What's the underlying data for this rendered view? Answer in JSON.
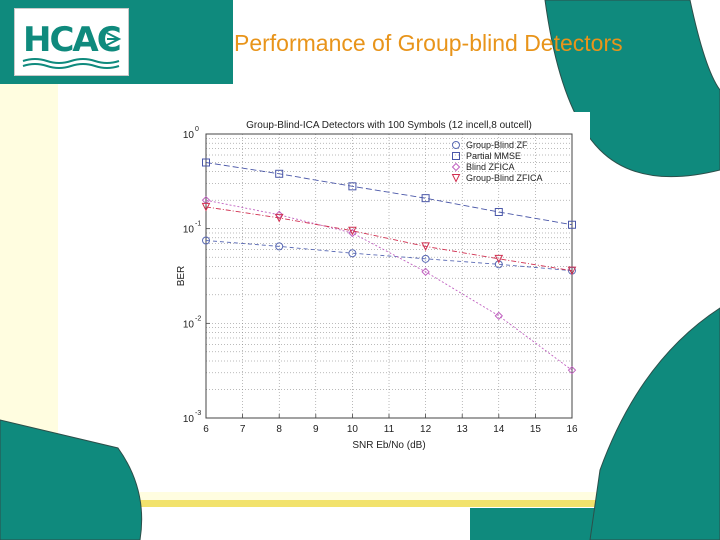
{
  "slide": {
    "title": "Performance of Group-blind Detectors",
    "logo_text": "HCAC",
    "colors": {
      "teal": "#0f8a7d",
      "title_orange": "#e8941a",
      "cream": "#fffde0",
      "yellow_bar": "#f2e26c"
    }
  },
  "chart_data": {
    "type": "line",
    "title": "Group-Blind-ICA Detectors with 100 Symbols (12 incell,8 outcell)",
    "xlabel": "SNR Eb/No (dB)",
    "ylabel": "BER",
    "xlim": [
      6,
      16
    ],
    "ylim": [
      0.001,
      1
    ],
    "yscale": "log",
    "grid": true,
    "legend_position": "top-right",
    "x_ticks": [
      6,
      7,
      8,
      9,
      10,
      11,
      12,
      13,
      14,
      15,
      16
    ],
    "y_ticks": [
      {
        "value": 1,
        "base": "10",
        "exp": "0"
      },
      {
        "value": 0.1,
        "base": "10",
        "exp": "-1"
      },
      {
        "value": 0.01,
        "base": "10",
        "exp": "-2"
      },
      {
        "value": 0.001,
        "base": "10",
        "exp": "-3"
      }
    ],
    "x": [
      6,
      8,
      10,
      12,
      14,
      16
    ],
    "series": [
      {
        "name": "Group-Blind ZF",
        "marker": "circle",
        "color": "#5b6bb5",
        "values": [
          0.075,
          0.065,
          0.055,
          0.048,
          0.042,
          0.036
        ]
      },
      {
        "name": "Partial MMSE",
        "marker": "square",
        "color": "#4a57a8",
        "values": [
          0.5,
          0.38,
          0.28,
          0.21,
          0.15,
          0.11
        ]
      },
      {
        "name": "Blind ZFICA",
        "marker": "diamond",
        "color": "#c060c0",
        "values": [
          0.2,
          0.14,
          0.09,
          0.035,
          0.012,
          0.0032
        ]
      },
      {
        "name": "Group-Blind ZFICA",
        "marker": "triangle",
        "color": "#d03050",
        "values": [
          0.17,
          0.13,
          0.095,
          0.065,
          0.048,
          0.036
        ]
      }
    ]
  }
}
